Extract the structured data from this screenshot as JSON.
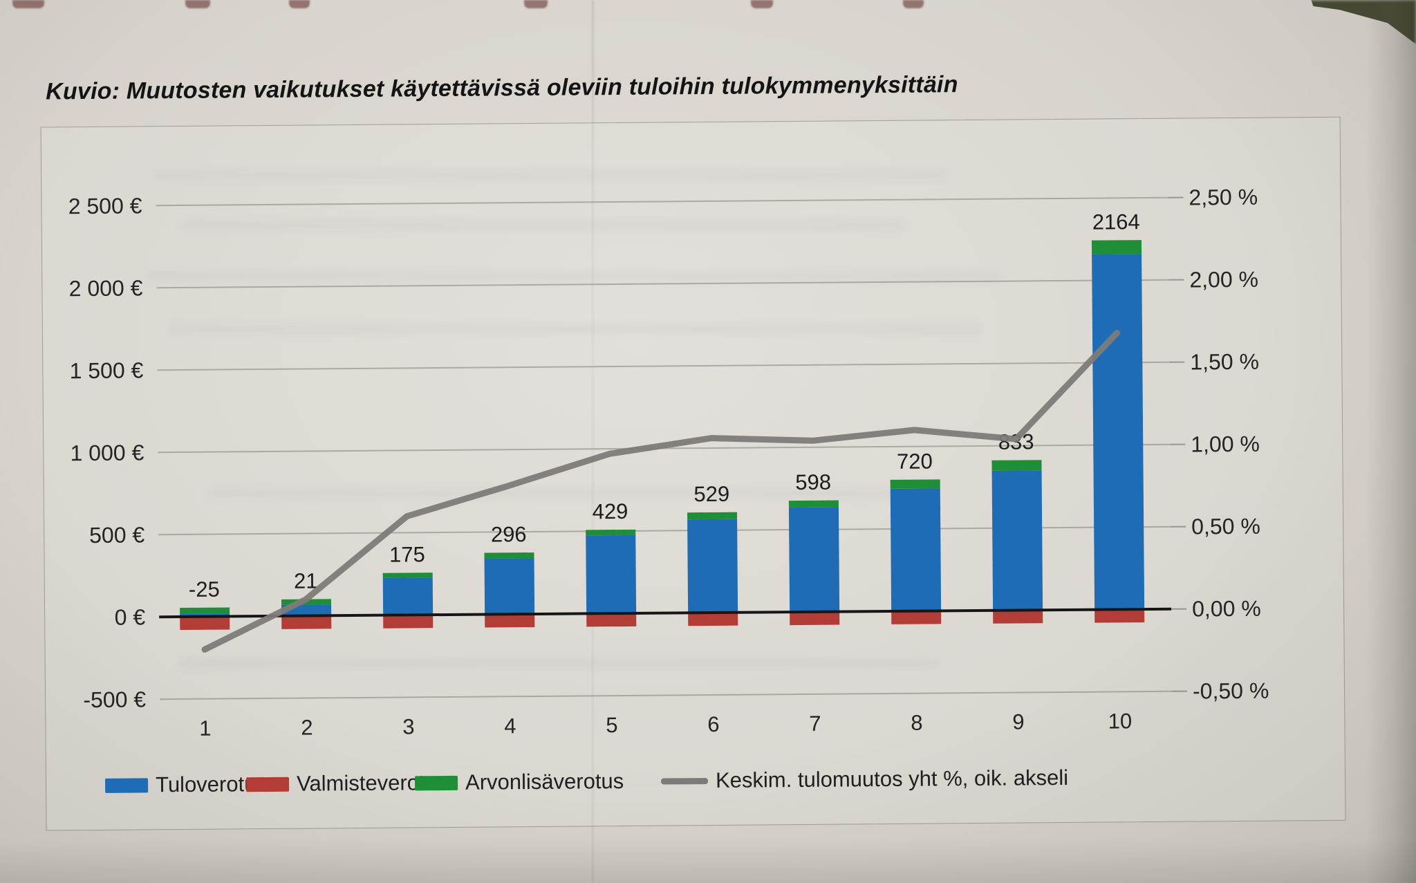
{
  "page": {
    "title": "Kuvio: Muutosten vaikutukset käytettävissä oleviin tuloihin tulokymmenyksittäin"
  },
  "chart_data": {
    "type": "bar",
    "subtype": "stacked-bars-with-line-on-secondary-axis",
    "title": "Kuvio: Muutosten vaikutukset käytettävissä oleviin tuloihin tulokymmenyksittäin",
    "categories": [
      "1",
      "2",
      "3",
      "4",
      "5",
      "6",
      "7",
      "8",
      "9",
      "10"
    ],
    "bar_total_labels": [
      "-25",
      "21",
      "175",
      "296",
      "429",
      "529",
      "598",
      "720",
      "833",
      "2164"
    ],
    "totals_eur": [
      -25,
      21,
      175,
      296,
      429,
      529,
      598,
      720,
      833,
      2164
    ],
    "series": [
      {
        "name": "Tuloverotus",
        "type": "bar",
        "color": "#1d6cb5",
        "values": [
          15,
          66,
          225,
          341,
          474,
          569,
          633,
          745,
          848,
          2159
        ]
      },
      {
        "name": "Valmisteverotus",
        "type": "bar",
        "color": "#b23c36",
        "values": [
          -80,
          -80,
          -80,
          -80,
          -80,
          -80,
          -80,
          -80,
          -80,
          -80
        ]
      },
      {
        "name": "Arvonlisäverotus",
        "type": "bar",
        "color": "#1e8f37",
        "values": [
          40,
          35,
          30,
          35,
          35,
          40,
          45,
          55,
          65,
          85
        ]
      }
    ],
    "line_series": {
      "name": "Keskim. tulomuutos yht %, oik. akseli",
      "axis": "right",
      "color": "#7d7b78",
      "values_percent": [
        -0.2,
        0.1,
        0.6,
        0.78,
        0.97,
        1.06,
        1.04,
        1.1,
        1.04,
        1.68
      ]
    },
    "left_axis": {
      "tick_labels": [
        "2 500 €",
        "2 000 €",
        "1 500 €",
        "1 000 €",
        "500 €",
        "0 €",
        "-500 €"
      ],
      "tick_values": [
        2500,
        2000,
        1500,
        1000,
        500,
        0,
        -500
      ],
      "range": [
        -500,
        2500
      ]
    },
    "right_axis": {
      "tick_labels": [
        "2,50 %",
        "2,00 %",
        "1,50 %",
        "1,00 %",
        "0,50 %",
        "0,00 %",
        "-0,50 %"
      ],
      "tick_values": [
        2.5,
        2.0,
        1.5,
        1.0,
        0.5,
        0.0,
        -0.5
      ],
      "range": [
        -0.5,
        2.5
      ]
    },
    "gridlines": true,
    "legend_position": "bottom"
  },
  "legend": {
    "items": [
      {
        "label": "Tuloverotus",
        "swatch": "bar",
        "color": "#1d6cb5"
      },
      {
        "label": "Valmisteverotus",
        "swatch": "bar",
        "color": "#b23c36"
      },
      {
        "label": "Arvonlisäverotus",
        "swatch": "bar",
        "color": "#1e8f37"
      },
      {
        "label": "Keskim. tulomuutos yht %, oik. akseli",
        "swatch": "line",
        "color": "#7d7b78"
      }
    ]
  }
}
